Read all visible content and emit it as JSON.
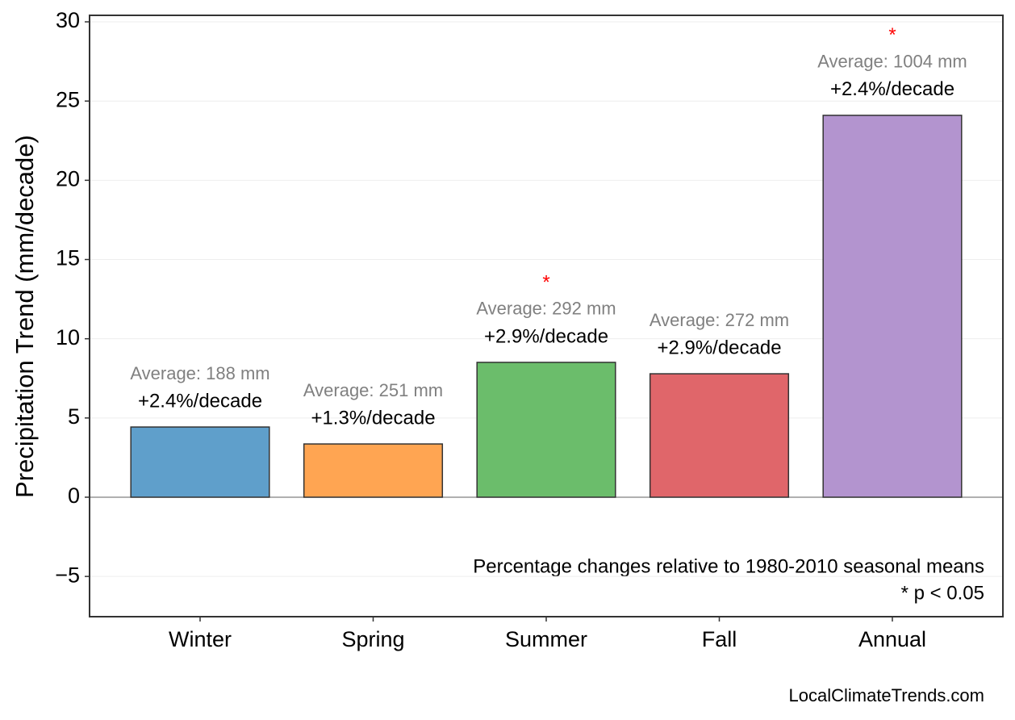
{
  "chart_data": {
    "type": "bar",
    "y_label": "Precipitation Trend (mm/decade)",
    "categories": [
      "Winter",
      "Spring",
      "Summer",
      "Fall",
      "Annual"
    ],
    "values": [
      4.43,
      3.36,
      8.51,
      7.79,
      24.1
    ],
    "colors": [
      "#5f9fcb",
      "#ffa552",
      "#6bbd6b",
      "#e0666a",
      "#b394cf"
    ],
    "trend_labels": [
      "+2.4%/decade",
      "+1.3%/decade",
      "+2.9%/decade",
      "+2.9%/decade",
      "+2.4%/decade"
    ],
    "average_labels": [
      "Average: 188 mm",
      "Average: 251 mm",
      "Average: 292 mm",
      "Average: 272 mm",
      "Average: 1004 mm"
    ],
    "significance_labels": [
      null,
      null,
      "*",
      null,
      "*"
    ],
    "ylim": [
      -7.54,
      30.41
    ],
    "yticks": [
      {
        "value": -5,
        "label": "−5"
      },
      0,
      5,
      10,
      15,
      20,
      25,
      30
    ],
    "grid": true,
    "annotations": [
      "Percentage changes relative to 1980-2010 seasonal means",
      "* p < 0.05"
    ],
    "source": "LocalClimateTrends.com"
  }
}
